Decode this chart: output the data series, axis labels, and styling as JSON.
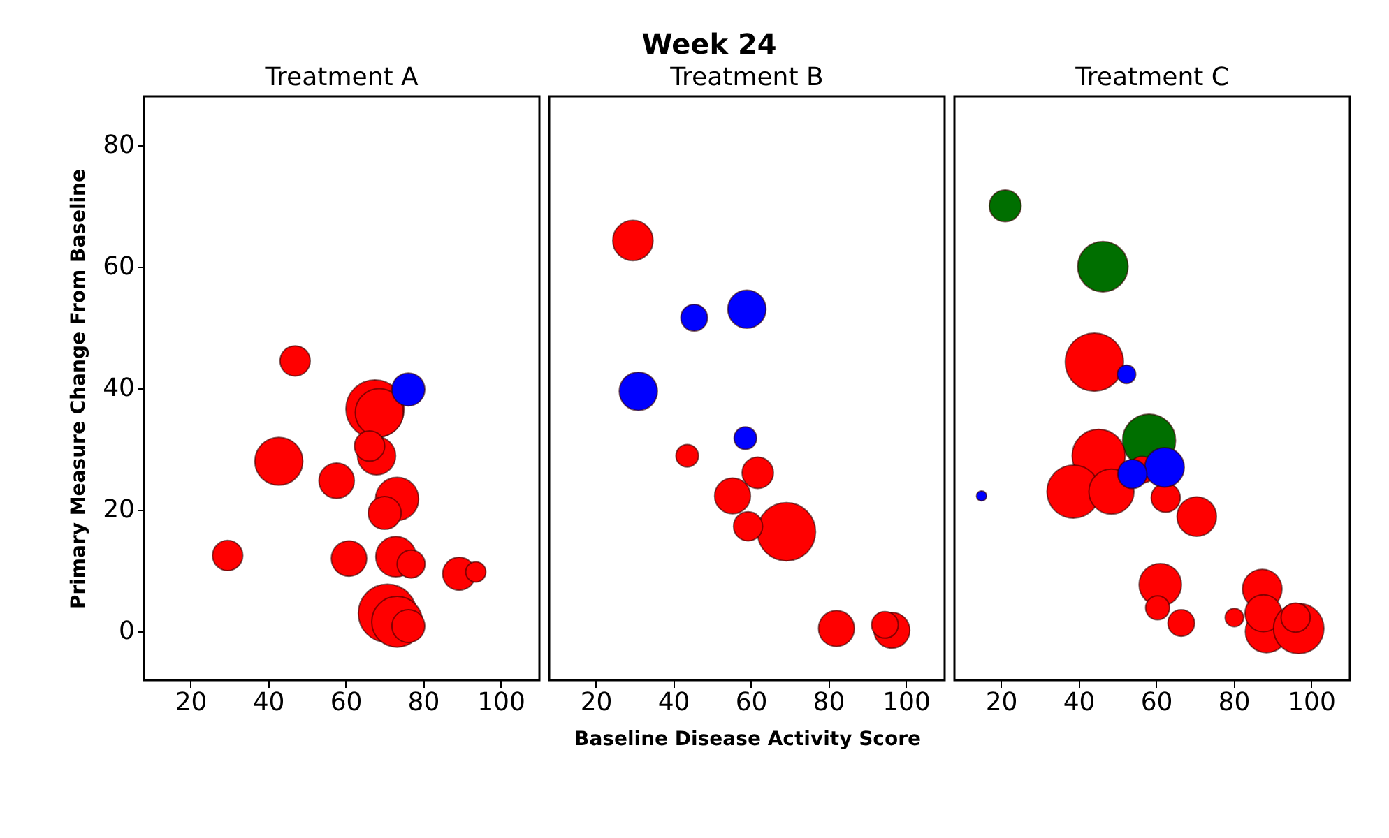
{
  "chart_data": [
    {
      "type": "bubble",
      "subtitle": "Treatment A",
      "ylabel": "Primary Measure Change From Baseline",
      "xlim": [
        8,
        110
      ],
      "ylim": [
        -8,
        88
      ],
      "xticks": [
        20,
        40,
        60,
        80,
        100
      ],
      "yticks": [
        0,
        20,
        40,
        60,
        80
      ],
      "grid": false,
      "marker": "circle",
      "series": [
        {
          "color": "#ff0000",
          "x": [
            47,
            67.6,
            68.7,
            68,
            66.2,
            42.8,
            57.7,
            73.3,
            70.1,
            29.6,
            60.9,
            73,
            76.9,
            89.3,
            93.6,
            70.8,
            73.3,
            76.2
          ],
          "values": [
            44.5,
            36.6,
            36,
            28.9,
            30.5,
            28,
            24.8,
            21.8,
            19.5,
            12.5,
            12,
            12.3,
            11.1,
            9.5,
            9.8,
            3,
            1.6,
            0.9
          ],
          "sizes": [
            0.27,
            1,
            0.68,
            0.43,
            0.27,
            0.68,
            0.37,
            0.55,
            0.32,
            0.27,
            0.37,
            0.48,
            0.23,
            0.32,
            0.12,
            1,
            0.76,
            0.32
          ]
        },
        {
          "color": "#0000ff",
          "x": [
            76.2
          ],
          "values": [
            39.8
          ],
          "sizes": [
            0.32
          ]
        }
      ]
    },
    {
      "type": "bubble",
      "title": "Week 24",
      "subtitle": "Treatment B",
      "xlabel": "Baseline Disease Activity Score",
      "xlim": [
        8,
        110
      ],
      "ylim": [
        -8,
        88
      ],
      "xticks": [
        20,
        40,
        60,
        80,
        100
      ],
      "grid": false,
      "marker": "circle",
      "tick_labels": "x",
      "series": [
        {
          "color": "#ff0000",
          "x": [
            29.6,
            43.6,
            61.8,
            55.3,
            69.2,
            59.3,
            82.1,
            96.4,
            94.6
          ],
          "values": [
            64.3,
            28.9,
            26.1,
            22.3,
            16.4,
            17.3,
            0.5,
            0.2,
            1.1
          ],
          "sizes": [
            0.48,
            0.15,
            0.29,
            0.38,
            1,
            0.25,
            0.38,
            0.38,
            0.21
          ]
        },
        {
          "color": "#0000ff",
          "x": [
            45.4,
            59,
            31,
            58.6
          ],
          "values": [
            51.6,
            53,
            39.5,
            31.8
          ],
          "sizes": [
            0.21,
            0.43,
            0.43,
            0.15
          ]
        }
      ]
    },
    {
      "type": "bubble",
      "subtitle": "Treatment C",
      "xlim": [
        8,
        110
      ],
      "ylim": [
        -8,
        88
      ],
      "xticks": [
        20,
        40,
        60,
        80,
        100
      ],
      "grid": false,
      "marker": "circle",
      "tick_labels": "x",
      "series": [
        {
          "color": "#006f00",
          "x": [
            21.1,
            46.3,
            58.2
          ],
          "values": [
            70,
            60,
            31.4
          ],
          "sizes": [
            0.3,
            0.75,
            0.83
          ]
        },
        {
          "color": "#ff0000",
          "x": [
            44.1,
            45.2,
            38.7,
            48.5,
            62.5,
            70.5,
            61.1,
            60.4,
            66.5,
            80.2,
            87.4,
            88.5,
            87.7,
            96.8,
            96,
            56.4
          ],
          "values": [
            44.3,
            28.9,
            23,
            23,
            22,
            18.9,
            7.7,
            3.9,
            1.4,
            2.3,
            7,
            0,
            3,
            0.5,
            2.3,
            26.6
          ],
          "sizes": [
            1,
            0.83,
            0.83,
            0.6,
            0.25,
            0.46,
            0.53,
            0.17,
            0.21,
            0.1,
            0.46,
            0.53,
            0.4,
            0.75,
            0.25,
            0.21
          ]
        },
        {
          "color": "#0000ff",
          "x": [
            52.4,
            62.2,
            53.9,
            15
          ],
          "values": [
            42.3,
            27,
            25.9,
            22.3
          ],
          "sizes": [
            0.1,
            0.46,
            0.25,
            0.03
          ]
        }
      ]
    }
  ]
}
